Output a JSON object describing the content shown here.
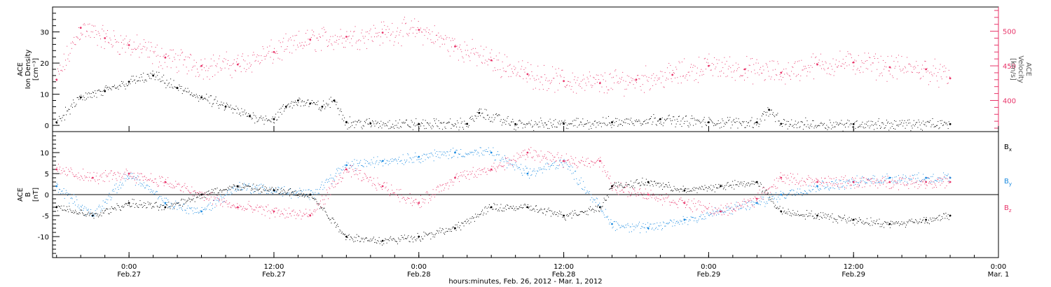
{
  "xlabel": "hours:minutes, Feb. 26, 2012 - Mar. 1, 2012",
  "x_ticks": [
    {
      "time": "0:00",
      "date": "Feb.27"
    },
    {
      "time": "12:00",
      "date": "Feb.27"
    },
    {
      "time": "0:00",
      "date": "Feb.28"
    },
    {
      "time": "12:00",
      "date": "Feb.28"
    },
    {
      "time": "0:00",
      "date": "Feb.29"
    },
    {
      "time": "12:00",
      "date": "Feb.29"
    },
    {
      "time": "0:00",
      "date": "Mar. 1"
    }
  ],
  "colors": {
    "black": "#000000",
    "pink": "#e8356a",
    "blue": "#1a8ae0"
  },
  "top_panel": {
    "left_label": [
      "ACE",
      "Ion Density",
      "[cm⁻³]"
    ],
    "right_label": [
      "ACE",
      "Velocity",
      "[km/s]"
    ],
    "left_ticks": [
      "0",
      "10",
      "20",
      "30"
    ],
    "right_ticks": [
      "400",
      "450",
      "500"
    ]
  },
  "bottom_panel": {
    "left_label": [
      "ACE",
      "B",
      "[nT]"
    ],
    "left_ticks": [
      "-10",
      "-5",
      "0",
      "5",
      "10"
    ],
    "legend": [
      "Bx",
      "By",
      "Bz"
    ]
  },
  "chart_data": [
    {
      "type": "scatter",
      "title": "",
      "xlabel": "hours:minutes, Feb. 26, 2012 - Mar. 1, 2012",
      "xlim": [
        "2012-02-26 17:40",
        "2012-03-01 00:00"
      ],
      "y_left": {
        "label": "ACE Ion Density [cm^-3]",
        "ylim": [
          -2,
          38
        ]
      },
      "y_right": {
        "label": "ACE Velocity [km/s]",
        "ylim": [
          355,
          535
        ]
      },
      "series": [
        {
          "name": "Ion Density",
          "axis": "left",
          "color": "#000000",
          "x": [
            "2012-02-26 18:00",
            "2012-02-26 20:00",
            "2012-02-26 22:00",
            "2012-02-27 00:00",
            "2012-02-27 02:00",
            "2012-02-27 04:00",
            "2012-02-27 06:00",
            "2012-02-27 08:00",
            "2012-02-27 10:00",
            "2012-02-27 12:00",
            "2012-02-27 13:00",
            "2012-02-27 14:00",
            "2012-02-27 15:00",
            "2012-02-27 16:00",
            "2012-02-27 17:00",
            "2012-02-27 18:00",
            "2012-02-27 20:00",
            "2012-02-28 00:00",
            "2012-02-28 04:00",
            "2012-02-28 05:00",
            "2012-02-28 08:00",
            "2012-02-28 12:00",
            "2012-02-28 16:00",
            "2012-02-28 20:00",
            "2012-02-29 00:00",
            "2012-02-29 04:00",
            "2012-02-29 05:00",
            "2012-02-29 06:00",
            "2012-02-29 12:00",
            "2012-02-29 20:00"
          ],
          "y": [
            1,
            9,
            11,
            14,
            16,
            12,
            9,
            6,
            3,
            2,
            6,
            8,
            7,
            6,
            8,
            1,
            0.6,
            0.4,
            0.5,
            4,
            0.4,
            0.5,
            1,
            2,
            1,
            1,
            5,
            0.5,
            0.4,
            0.4
          ]
        },
        {
          "name": "Velocity",
          "axis": "right",
          "color": "#e8356a",
          "x": [
            "2012-02-26 18:00",
            "2012-02-26 20:00",
            "2012-02-26 22:00",
            "2012-02-27 00:00",
            "2012-02-27 03:00",
            "2012-02-27 06:00",
            "2012-02-27 09:00",
            "2012-02-27 12:00",
            "2012-02-27 15:00",
            "2012-02-27 18:00",
            "2012-02-27 21:00",
            "2012-02-28 00:00",
            "2012-02-28 03:00",
            "2012-02-28 06:00",
            "2012-02-28 09:00",
            "2012-02-28 12:00",
            "2012-02-28 15:00",
            "2012-02-28 18:00",
            "2012-02-28 21:00",
            "2012-02-29 00:00",
            "2012-02-29 03:00",
            "2012-02-29 06:00",
            "2012-02-29 09:00",
            "2012-02-29 12:00",
            "2012-02-29 15:00",
            "2012-02-29 18:00",
            "2012-02-29 20:00"
          ],
          "y": [
            430,
            505,
            490,
            480,
            462,
            450,
            452,
            470,
            488,
            492,
            498,
            502,
            478,
            458,
            438,
            428,
            425,
            430,
            437,
            450,
            445,
            440,
            452,
            455,
            448,
            445,
            432
          ]
        }
      ]
    },
    {
      "type": "scatter",
      "title": "",
      "xlabel": "hours:minutes, Feb. 26, 2012 - Mar. 1, 2012",
      "xlim": [
        "2012-02-26 17:40",
        "2012-03-01 00:00"
      ],
      "ylabel": "ACE B [nT]",
      "ylim": [
        -15,
        15
      ],
      "series": [
        {
          "name": "Bx",
          "color": "#000000",
          "x": [
            "2012-02-26 18:00",
            "2012-02-26 21:00",
            "2012-02-27 00:00",
            "2012-02-27 03:00",
            "2012-02-27 06:00",
            "2012-02-27 09:00",
            "2012-02-27 12:00",
            "2012-02-27 15:00",
            "2012-02-27 18:00",
            "2012-02-27 21:00",
            "2012-02-28 00:00",
            "2012-02-28 03:00",
            "2012-02-28 06:00",
            "2012-02-28 09:00",
            "2012-02-28 12:00",
            "2012-02-28 15:00",
            "2012-02-28 16:00",
            "2012-02-28 19:00",
            "2012-02-28 22:00",
            "2012-02-29 01:00",
            "2012-02-29 04:00",
            "2012-02-29 06:00",
            "2012-02-29 09:00",
            "2012-02-29 12:00",
            "2012-02-29 15:00",
            "2012-02-29 18:00",
            "2012-02-29 20:00"
          ],
          "y": [
            -3,
            -5,
            -2,
            -3,
            0,
            2,
            1,
            0,
            -10,
            -11,
            -10,
            -8,
            -3,
            -3,
            -5,
            -3,
            2,
            3,
            1,
            2,
            3,
            -4,
            -5,
            -6,
            -7,
            -6,
            -5
          ]
        },
        {
          "name": "By",
          "color": "#1a8ae0",
          "x": [
            "2012-02-26 18:00",
            "2012-02-26 21:00",
            "2012-02-27 00:00",
            "2012-02-27 03:00",
            "2012-02-27 06:00",
            "2012-02-27 09:00",
            "2012-02-27 12:00",
            "2012-02-27 15:00",
            "2012-02-27 18:00",
            "2012-02-27 21:00",
            "2012-02-28 00:00",
            "2012-02-28 03:00",
            "2012-02-28 06:00",
            "2012-02-28 09:00",
            "2012-02-28 12:00",
            "2012-02-28 15:00",
            "2012-02-28 16:00",
            "2012-02-28 19:00",
            "2012-02-28 22:00",
            "2012-02-29 01:00",
            "2012-02-29 04:00",
            "2012-02-29 06:00",
            "2012-02-29 09:00",
            "2012-02-29 12:00",
            "2012-02-29 15:00",
            "2012-02-29 18:00",
            "2012-02-29 20:00"
          ],
          "y": [
            2,
            -5,
            5,
            -2,
            -4,
            2,
            1,
            0,
            7,
            8,
            9,
            10,
            10,
            5,
            8,
            -3,
            -7,
            -8,
            -6,
            -4,
            -2,
            0,
            2,
            3,
            4,
            4,
            4
          ]
        },
        {
          "name": "Bz",
          "color": "#e8356a",
          "x": [
            "2012-02-26 18:00",
            "2012-02-26 21:00",
            "2012-02-27 00:00",
            "2012-02-27 03:00",
            "2012-02-27 06:00",
            "2012-02-27 09:00",
            "2012-02-27 12:00",
            "2012-02-27 15:00",
            "2012-02-27 18:00",
            "2012-02-27 21:00",
            "2012-02-28 00:00",
            "2012-02-28 03:00",
            "2012-02-28 06:00",
            "2012-02-28 09:00",
            "2012-02-28 12:00",
            "2012-02-28 15:00",
            "2012-02-28 16:00",
            "2012-02-28 19:00",
            "2012-02-28 22:00",
            "2012-02-29 01:00",
            "2012-02-29 04:00",
            "2012-02-29 06:00",
            "2012-02-29 09:00",
            "2012-02-29 12:00",
            "2012-02-29 15:00",
            "2012-02-29 18:00",
            "2012-02-29 20:00"
          ],
          "y": [
            6,
            4,
            5,
            3,
            0,
            -3,
            -4,
            -5,
            6,
            2,
            -2,
            4,
            6,
            10,
            8,
            8,
            2,
            0,
            -2,
            -4,
            -1,
            4,
            3,
            3,
            3,
            3,
            3
          ]
        }
      ]
    }
  ]
}
